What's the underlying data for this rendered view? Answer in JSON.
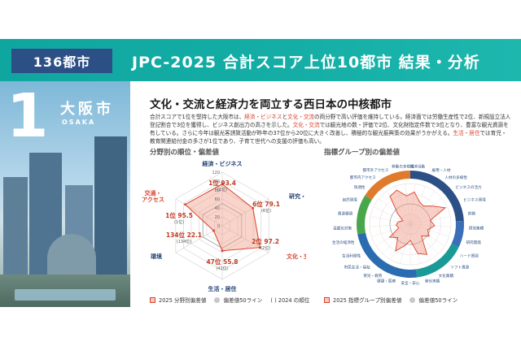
{
  "header": {
    "badge": "136都市",
    "title": "JPC-2025  合計スコア上位10都市  結果・分析"
  },
  "city": {
    "rank": "1",
    "name": "大阪市",
    "roman": "OSAKA"
  },
  "headline": "文化・交流と経済力を両立する西日本の中核都市",
  "description": [
    {
      "t": "合計スコアで1位を堅持した大阪市は、",
      "hl": false
    },
    {
      "t": "経済・ビジネス",
      "hl": true
    },
    {
      "t": "と",
      "hl": false
    },
    {
      "t": "文化・交流",
      "hl": true
    },
    {
      "t": "の両分野で高い評価を維持している。経済面では労働生産性で2位、新規設立法人登記割合で3位を獲得し、ビジネス創出力の高さを示した。",
      "hl": false
    },
    {
      "t": "文化・交流",
      "hl": true
    },
    {
      "t": "では観光地の数・評価で2位、文化財指定件数で3位となり、豊富な観光資源を有している。さらに今年は観光客誘致活動が昨年の37位から20位に大きく改善し、積極的な観光振興策の効果がうかがえる。",
      "hl": false
    },
    {
      "t": "生活・居住",
      "hl": true
    },
    {
      "t": "では育児・教育関連給付金の多さが1位であり、子育て世代への支援の評価も高い。",
      "hl": false
    }
  ],
  "left_chart": {
    "section_label": "分野別の順位・偏差値",
    "legend": {
      "series": "2025 分野別偏差値",
      "baseline": "偏差値50ライン",
      "paren": "(   ) 2024 の順位"
    },
    "scale_ticks": [
      "120",
      "100",
      "80",
      "60",
      "40",
      "20",
      "0"
    ],
    "axes": [
      {
        "name": "経済・ビジネス",
        "rank": "1位",
        "score": "93.4",
        "prev": "(1位)"
      },
      {
        "name": "研究・開発",
        "rank": "6位",
        "score": "79.1",
        "prev": "(6位)"
      },
      {
        "name": "文化・交流",
        "rank": "2位",
        "score": "97.2",
        "prev": "(2位)"
      },
      {
        "name": "生活・居住",
        "rank": "47位",
        "score": "55.8",
        "prev": "(41位)"
      },
      {
        "name": "環境",
        "rank": "134位",
        "score": "22.1",
        "prev": "(134位)"
      },
      {
        "name": "交通・アクセス",
        "rank": "1位",
        "score": "95.5",
        "prev": "(1位)"
      }
    ]
  },
  "chart_data": {
    "type": "radar",
    "categories": [
      "経済・ビジネス",
      "研究・開発",
      "文化・交流",
      "生活・居住",
      "環境",
      "交通・アクセス"
    ],
    "series": [
      {
        "name": "2025 分野別偏差値",
        "values": [
          93.4,
          79.1,
          97.2,
          55.8,
          22.1,
          95.5
        ]
      },
      {
        "name": "偏差値50ライン",
        "values": [
          50,
          50,
          50,
          50,
          50,
          50
        ]
      }
    ],
    "ranks_2025": [
      "1位",
      "6位",
      "2位",
      "47位",
      "134位",
      "1位"
    ],
    "ranks_2024": [
      "(1位)",
      "(6位)",
      "(2位)",
      "(41位)",
      "(134位)",
      "(1位)"
    ],
    "rlim": [
      0,
      120
    ],
    "ticks": [
      0,
      20,
      40,
      60,
      80,
      100,
      120
    ]
  },
  "right_chart": {
    "section_label": "指標グループ別の偏差値",
    "legend": {
      "series": "2025 指標グループ別偏差値",
      "baseline": "偏差値50ライン"
    },
    "groups": [
      "経済・ビジネス",
      "研究・開発",
      "文化・交流",
      "生活・居住",
      "環境",
      "交通・アクセス"
    ],
    "group_colors": [
      "#2c4f86",
      "#3a6fb8",
      "#1a9a96",
      "#2b6cb0",
      "#4aa64a",
      "#e07a2c"
    ],
    "indicators": [
      "経済活動",
      "雇用・人材",
      "人材の多様性",
      "ビジネスの活力",
      "ビジネス環境",
      "財務",
      "研究集積",
      "研究開発",
      "ハード資源",
      "ソフト資源",
      "文化集積",
      "発信実績",
      "安全・安心",
      "健康・医療",
      "育児・教育",
      "市民生活・福祉",
      "生活利便性",
      "生活の経済性",
      "温暖化対策",
      "資源循環",
      "自然環境",
      "快適性",
      "都市内アクセス",
      "都市外アクセス",
      "移動の多様性"
    ]
  }
}
